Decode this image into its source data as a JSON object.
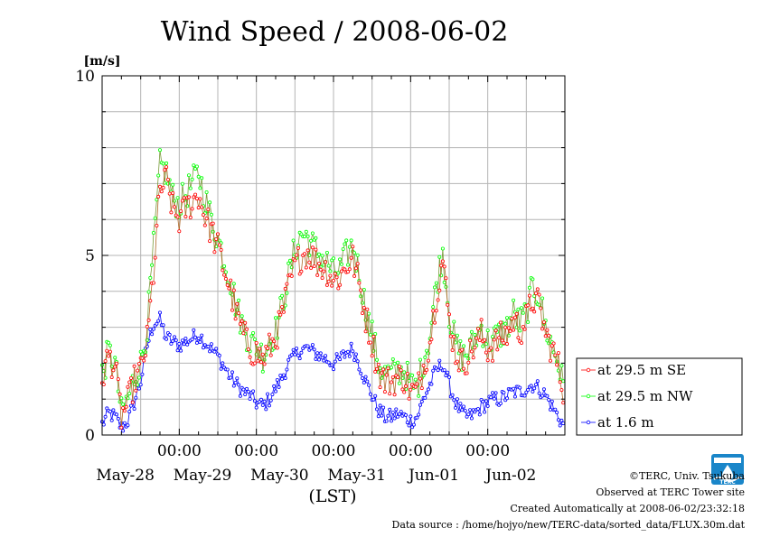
{
  "chart_data": {
    "type": "line",
    "title": "Wind Speed / 2008-06-02",
    "unit_label": "[m/s]",
    "xlabel": "(LST)",
    "ylim": [
      0,
      10
    ],
    "y_ticks": [
      "0",
      "5",
      "10"
    ],
    "time_ticks": [
      "00:00",
      "00:00",
      "00:00",
      "00:00",
      "00:00"
    ],
    "date_labels": [
      "May-28",
      "May-29",
      "May-30",
      "May-31",
      "Jun-01",
      "Jun-02"
    ],
    "x_range_hours": [
      0,
      144
    ],
    "sample_interval_hours": 0.5,
    "grid": true,
    "legend_position": "right",
    "series": [
      {
        "name": "at 29.5 m SE",
        "color": "#ff0000",
        "anchors": [
          [
            0,
            1.6
          ],
          [
            2,
            2.2
          ],
          [
            4,
            1.9
          ],
          [
            6,
            0.5
          ],
          [
            8,
            0.9
          ],
          [
            10,
            1.5
          ],
          [
            12,
            1.8
          ],
          [
            14,
            2.6
          ],
          [
            16,
            4.5
          ],
          [
            18,
            6.8
          ],
          [
            20,
            7.1
          ],
          [
            22,
            6.3
          ],
          [
            24,
            6.0
          ],
          [
            26,
            6.3
          ],
          [
            28,
            6.5
          ],
          [
            30,
            6.7
          ],
          [
            32,
            6.1
          ],
          [
            34,
            5.7
          ],
          [
            36,
            5.2
          ],
          [
            38,
            4.6
          ],
          [
            40,
            4.0
          ],
          [
            42,
            3.3
          ],
          [
            44,
            2.8
          ],
          [
            46,
            2.4
          ],
          [
            48,
            2.3
          ],
          [
            50,
            2.1
          ],
          [
            52,
            2.4
          ],
          [
            54,
            2.7
          ],
          [
            56,
            3.3
          ],
          [
            58,
            4.1
          ],
          [
            60,
            4.7
          ],
          [
            62,
            5.0
          ],
          [
            64,
            5.1
          ],
          [
            66,
            4.9
          ],
          [
            68,
            4.7
          ],
          [
            70,
            4.6
          ],
          [
            72,
            4.3
          ],
          [
            74,
            4.4
          ],
          [
            76,
            4.7
          ],
          [
            78,
            4.9
          ],
          [
            80,
            4.2
          ],
          [
            82,
            3.3
          ],
          [
            84,
            2.6
          ],
          [
            86,
            1.8
          ],
          [
            88,
            1.5
          ],
          [
            90,
            1.5
          ],
          [
            92,
            1.6
          ],
          [
            94,
            1.6
          ],
          [
            96,
            1.2
          ],
          [
            98,
            1.2
          ],
          [
            100,
            1.9
          ],
          [
            102,
            2.6
          ],
          [
            104,
            3.9
          ],
          [
            106,
            4.9
          ],
          [
            108,
            3.2
          ],
          [
            110,
            2.3
          ],
          [
            112,
            2.0
          ],
          [
            114,
            2.2
          ],
          [
            116,
            2.5
          ],
          [
            118,
            2.8
          ],
          [
            120,
            2.4
          ],
          [
            122,
            2.5
          ],
          [
            124,
            2.7
          ],
          [
            126,
            2.8
          ],
          [
            128,
            3.2
          ],
          [
            130,
            2.9
          ],
          [
            132,
            3.2
          ],
          [
            134,
            3.8
          ],
          [
            136,
            3.6
          ],
          [
            138,
            2.8
          ],
          [
            140,
            2.4
          ],
          [
            142,
            1.9
          ],
          [
            143.5,
            1.2
          ]
        ]
      },
      {
        "name": "at 29.5 m NW",
        "color": "#00ff00",
        "anchors": [
          [
            0,
            1.7
          ],
          [
            2,
            2.3
          ],
          [
            4,
            2.0
          ],
          [
            6,
            0.6
          ],
          [
            8,
            1.0
          ],
          [
            10,
            1.6
          ],
          [
            12,
            2.0
          ],
          [
            14,
            3.0
          ],
          [
            16,
            5.2
          ],
          [
            18,
            7.5
          ],
          [
            20,
            7.3
          ],
          [
            22,
            6.6
          ],
          [
            24,
            6.4
          ],
          [
            26,
            6.7
          ],
          [
            28,
            7.0
          ],
          [
            30,
            7.3
          ],
          [
            32,
            6.6
          ],
          [
            34,
            6.0
          ],
          [
            36,
            5.5
          ],
          [
            38,
            4.9
          ],
          [
            40,
            4.3
          ],
          [
            42,
            3.5
          ],
          [
            44,
            3.0
          ],
          [
            46,
            2.6
          ],
          [
            48,
            2.5
          ],
          [
            50,
            2.2
          ],
          [
            52,
            2.6
          ],
          [
            54,
            2.9
          ],
          [
            56,
            3.6
          ],
          [
            58,
            4.4
          ],
          [
            60,
            5.2
          ],
          [
            62,
            5.6
          ],
          [
            64,
            5.5
          ],
          [
            66,
            5.2
          ],
          [
            68,
            5.0
          ],
          [
            70,
            4.8
          ],
          [
            72,
            4.5
          ],
          [
            74,
            4.6
          ],
          [
            76,
            5.0
          ],
          [
            78,
            5.3
          ],
          [
            80,
            4.5
          ],
          [
            82,
            3.5
          ],
          [
            84,
            2.8
          ],
          [
            86,
            2.0
          ],
          [
            88,
            1.7
          ],
          [
            90,
            1.7
          ],
          [
            92,
            1.8
          ],
          [
            94,
            1.8
          ],
          [
            96,
            1.4
          ],
          [
            98,
            1.3
          ],
          [
            100,
            2.1
          ],
          [
            102,
            2.8
          ],
          [
            104,
            4.2
          ],
          [
            106,
            5.1
          ],
          [
            108,
            3.4
          ],
          [
            110,
            2.5
          ],
          [
            112,
            2.2
          ],
          [
            114,
            2.3
          ],
          [
            116,
            2.7
          ],
          [
            118,
            3.0
          ],
          [
            120,
            2.6
          ],
          [
            122,
            2.7
          ],
          [
            124,
            2.8
          ],
          [
            126,
            3.0
          ],
          [
            128,
            3.4
          ],
          [
            130,
            3.1
          ],
          [
            132,
            3.4
          ],
          [
            134,
            4.1
          ],
          [
            136,
            3.9
          ],
          [
            138,
            3.0
          ],
          [
            140,
            2.5
          ],
          [
            142,
            2.0
          ],
          [
            143.5,
            1.3
          ]
        ]
      },
      {
        "name": "at 1.6 m",
        "color": "#0000ff",
        "anchors": [
          [
            0,
            0.3
          ],
          [
            2,
            0.6
          ],
          [
            4,
            0.5
          ],
          [
            6,
            0.2
          ],
          [
            8,
            0.4
          ],
          [
            10,
            0.9
          ],
          [
            12,
            1.5
          ],
          [
            14,
            2.5
          ],
          [
            16,
            3.1
          ],
          [
            18,
            3.2
          ],
          [
            20,
            2.7
          ],
          [
            22,
            2.6
          ],
          [
            24,
            2.5
          ],
          [
            26,
            2.6
          ],
          [
            28,
            2.7
          ],
          [
            30,
            2.8
          ],
          [
            32,
            2.6
          ],
          [
            34,
            2.4
          ],
          [
            36,
            2.2
          ],
          [
            38,
            1.9
          ],
          [
            40,
            1.6
          ],
          [
            42,
            1.4
          ],
          [
            44,
            1.2
          ],
          [
            46,
            1.1
          ],
          [
            48,
            0.9
          ],
          [
            50,
            0.8
          ],
          [
            52,
            1.0
          ],
          [
            54,
            1.3
          ],
          [
            56,
            1.6
          ],
          [
            58,
            2.0
          ],
          [
            60,
            2.2
          ],
          [
            62,
            2.4
          ],
          [
            64,
            2.4
          ],
          [
            66,
            2.3
          ],
          [
            68,
            2.2
          ],
          [
            70,
            2.1
          ],
          [
            72,
            2.0
          ],
          [
            74,
            2.1
          ],
          [
            76,
            2.3
          ],
          [
            78,
            2.4
          ],
          [
            80,
            2.0
          ],
          [
            82,
            1.5
          ],
          [
            84,
            1.1
          ],
          [
            86,
            0.7
          ],
          [
            88,
            0.5
          ],
          [
            90,
            0.5
          ],
          [
            92,
            0.6
          ],
          [
            94,
            0.5
          ],
          [
            96,
            0.4
          ],
          [
            98,
            0.5
          ],
          [
            100,
            1.0
          ],
          [
            102,
            1.4
          ],
          [
            104,
            1.8
          ],
          [
            106,
            2.0
          ],
          [
            108,
            1.4
          ],
          [
            110,
            0.9
          ],
          [
            112,
            0.6
          ],
          [
            114,
            0.5
          ],
          [
            116,
            0.6
          ],
          [
            118,
            0.8
          ],
          [
            120,
            0.9
          ],
          [
            122,
            1.0
          ],
          [
            124,
            1.0
          ],
          [
            126,
            1.1
          ],
          [
            128,
            1.2
          ],
          [
            130,
            1.2
          ],
          [
            132,
            1.3
          ],
          [
            134,
            1.4
          ],
          [
            136,
            1.3
          ],
          [
            138,
            1.1
          ],
          [
            140,
            0.8
          ],
          [
            142,
            0.5
          ],
          [
            143.5,
            0.3
          ]
        ]
      }
    ]
  },
  "footer": {
    "copyright": "©TERC, Univ. Tsukuba",
    "observed": "Observed at TERC Tower site",
    "created": "Created Automatically at 2008-06-02/23:32:18",
    "source": "Data source : /home/hojyo/new/TERC-data/sorted_data/FLUX.30m.dat"
  },
  "logo_text": "TERC",
  "colors": {
    "grid": "#b4b4b4",
    "frame": "#000000",
    "logo": "#1a86c9"
  }
}
